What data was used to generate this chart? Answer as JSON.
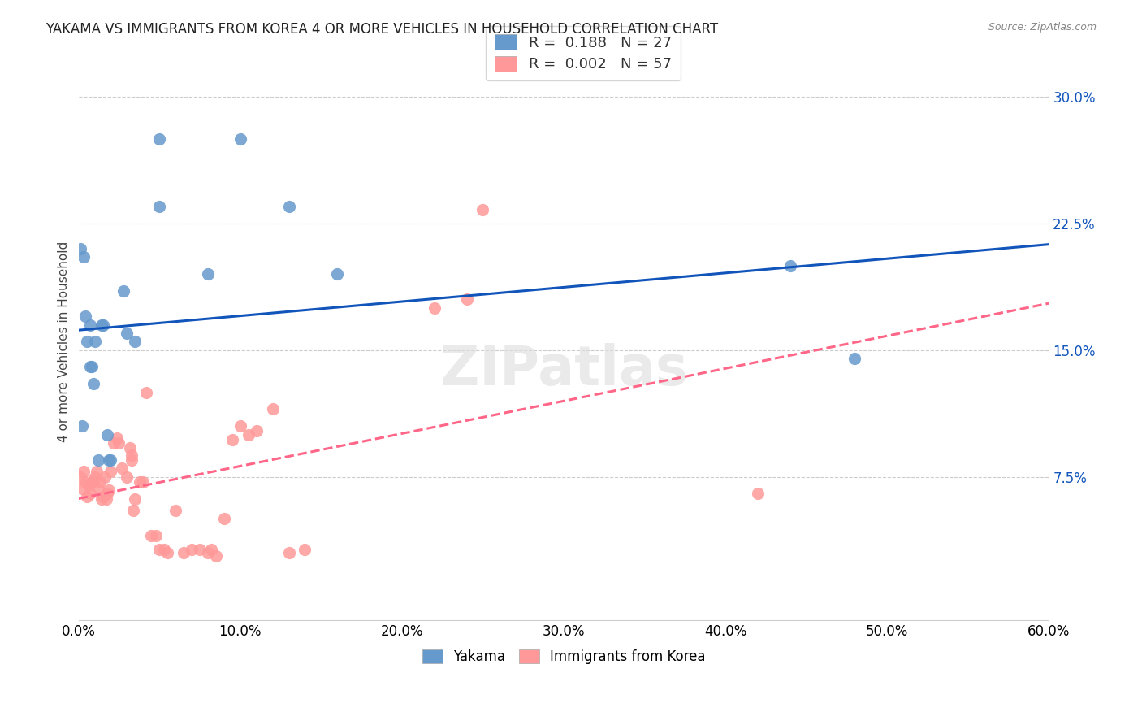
{
  "title": "YAKAMA VS IMMIGRANTS FROM KOREA 4 OR MORE VEHICLES IN HOUSEHOLD CORRELATION CHART",
  "source": "Source: ZipAtlas.com",
  "xlabel_bottom": [
    "0.0%",
    "60.0%"
  ],
  "ylabel": "4 or more Vehicles in Household",
  "ytick_labels": [
    "7.5%",
    "15.0%",
    "22.5%",
    "30.0%"
  ],
  "ytick_values": [
    0.075,
    0.15,
    0.225,
    0.3
  ],
  "xlim": [
    0.0,
    0.6
  ],
  "ylim": [
    -0.01,
    0.32
  ],
  "legend_labels": [
    "Yakama",
    "Immigrants from Korea"
  ],
  "R_yakama": 0.188,
  "N_yakama": 27,
  "R_korea": 0.002,
  "N_korea": 57,
  "blue_color": "#6699CC",
  "pink_color": "#FF9999",
  "line_blue": "#1155BB",
  "line_pink": "#FF6688",
  "watermark": "ZIPatlas",
  "yakama_x": [
    0.002,
    0.001,
    0.003,
    0.004,
    0.005,
    0.007,
    0.007,
    0.008,
    0.009,
    0.01,
    0.012,
    0.014,
    0.015,
    0.018,
    0.019,
    0.02,
    0.028,
    0.03,
    0.035,
    0.05,
    0.05,
    0.08,
    0.1,
    0.13,
    0.16,
    0.44,
    0.48
  ],
  "yakama_y": [
    0.105,
    0.21,
    0.205,
    0.17,
    0.155,
    0.14,
    0.165,
    0.14,
    0.13,
    0.155,
    0.085,
    0.165,
    0.165,
    0.1,
    0.085,
    0.085,
    0.185,
    0.16,
    0.155,
    0.275,
    0.235,
    0.195,
    0.275,
    0.235,
    0.195,
    0.2,
    0.145
  ],
  "korea_x": [
    0.001,
    0.002,
    0.003,
    0.004,
    0.005,
    0.006,
    0.007,
    0.008,
    0.009,
    0.01,
    0.011,
    0.012,
    0.013,
    0.014,
    0.015,
    0.016,
    0.017,
    0.018,
    0.019,
    0.02,
    0.022,
    0.024,
    0.025,
    0.027,
    0.03,
    0.032,
    0.033,
    0.033,
    0.034,
    0.035,
    0.038,
    0.04,
    0.042,
    0.045,
    0.048,
    0.05,
    0.053,
    0.055,
    0.06,
    0.065,
    0.07,
    0.075,
    0.08,
    0.082,
    0.085,
    0.09,
    0.095,
    0.1,
    0.105,
    0.11,
    0.12,
    0.13,
    0.14,
    0.22,
    0.24,
    0.25,
    0.42
  ],
  "korea_y": [
    0.075,
    0.068,
    0.078,
    0.072,
    0.063,
    0.07,
    0.065,
    0.072,
    0.073,
    0.075,
    0.078,
    0.068,
    0.072,
    0.062,
    0.063,
    0.075,
    0.062,
    0.065,
    0.067,
    0.078,
    0.095,
    0.098,
    0.095,
    0.08,
    0.075,
    0.092,
    0.085,
    0.088,
    0.055,
    0.062,
    0.072,
    0.072,
    0.125,
    0.04,
    0.04,
    0.032,
    0.032,
    0.03,
    0.055,
    0.03,
    0.032,
    0.032,
    0.03,
    0.032,
    0.028,
    0.05,
    0.097,
    0.105,
    0.1,
    0.102,
    0.115,
    0.03,
    0.032,
    0.175,
    0.18,
    0.233,
    0.065
  ]
}
